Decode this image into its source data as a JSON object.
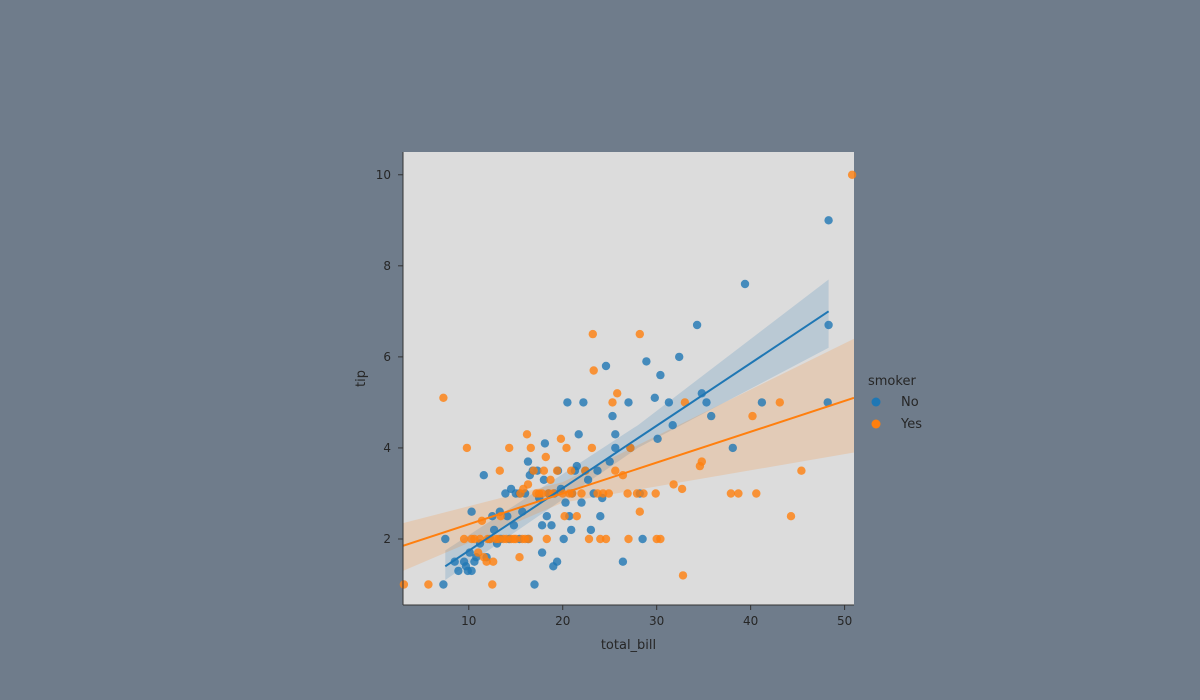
{
  "chart_data": {
    "type": "scatter",
    "xlabel": "total_bill",
    "ylabel": "tip",
    "xlim": [
      3,
      51
    ],
    "ylim": [
      0.55,
      10.5
    ],
    "xticks": [
      10,
      20,
      30,
      40,
      50
    ],
    "yticks": [
      2,
      4,
      6,
      8,
      10
    ],
    "grid": false,
    "background": "#dcdcdc",
    "legend": {
      "title": "smoker",
      "placement": "right"
    },
    "series": [
      {
        "name": "No",
        "color": "#1f77b4",
        "fit": {
          "x": [
            7.5,
            48.3
          ],
          "y": [
            1.4,
            7.0
          ]
        },
        "band": {
          "x": [
            7.5,
            28,
            48.3
          ],
          "lower": [
            1.1,
            4.0,
            6.2
          ],
          "upper": [
            1.75,
            4.5,
            7.7
          ]
        },
        "points": [
          [
            7.3,
            1.0
          ],
          [
            7.5,
            2.0
          ],
          [
            8.5,
            1.5
          ],
          [
            8.9,
            1.3
          ],
          [
            9.5,
            1.5
          ],
          [
            9.7,
            1.4
          ],
          [
            9.9,
            1.3
          ],
          [
            10.1,
            1.7
          ],
          [
            10.3,
            1.3
          ],
          [
            10.3,
            2.6
          ],
          [
            10.6,
            1.5
          ],
          [
            10.8,
            1.6
          ],
          [
            11.2,
            1.9
          ],
          [
            11.6,
            3.4
          ],
          [
            11.9,
            1.6
          ],
          [
            12.2,
            2.0
          ],
          [
            12.5,
            2.5
          ],
          [
            12.7,
            2.2
          ],
          [
            13.0,
            1.9
          ],
          [
            13.3,
            2.6
          ],
          [
            13.4,
            2.0
          ],
          [
            13.9,
            3.0
          ],
          [
            14.1,
            2.5
          ],
          [
            14.3,
            2.0
          ],
          [
            14.5,
            3.1
          ],
          [
            14.8,
            2.3
          ],
          [
            15.0,
            3.0
          ],
          [
            15.4,
            3.0
          ],
          [
            15.4,
            2.0
          ],
          [
            15.7,
            2.6
          ],
          [
            16.0,
            3.0
          ],
          [
            16.3,
            2.0
          ],
          [
            16.3,
            3.7
          ],
          [
            16.5,
            3.4
          ],
          [
            16.8,
            3.5
          ],
          [
            17.0,
            1.0
          ],
          [
            17.3,
            3.5
          ],
          [
            17.5,
            2.9
          ],
          [
            17.8,
            2.3
          ],
          [
            17.8,
            1.7
          ],
          [
            18.0,
            3.3
          ],
          [
            18.1,
            4.1
          ],
          [
            18.3,
            2.5
          ],
          [
            18.5,
            3.0
          ],
          [
            18.8,
            2.3
          ],
          [
            19.0,
            1.4
          ],
          [
            19.1,
            3.0
          ],
          [
            19.4,
            1.5
          ],
          [
            19.5,
            3.5
          ],
          [
            19.8,
            3.1
          ],
          [
            20.1,
            2.0
          ],
          [
            20.3,
            2.8
          ],
          [
            20.5,
            5.0
          ],
          [
            20.7,
            2.5
          ],
          [
            20.9,
            2.2
          ],
          [
            21.0,
            3.0
          ],
          [
            21.3,
            3.5
          ],
          [
            21.5,
            3.6
          ],
          [
            21.7,
            4.3
          ],
          [
            22.0,
            2.8
          ],
          [
            22.2,
            5.0
          ],
          [
            22.4,
            3.5
          ],
          [
            22.7,
            3.3
          ],
          [
            23.0,
            2.2
          ],
          [
            23.3,
            3.0
          ],
          [
            23.7,
            3.5
          ],
          [
            24.0,
            2.5
          ],
          [
            24.2,
            2.9
          ],
          [
            24.6,
            5.8
          ],
          [
            25.0,
            3.7
          ],
          [
            25.3,
            4.7
          ],
          [
            25.6,
            4.3
          ],
          [
            25.6,
            4.0
          ],
          [
            26.4,
            1.5
          ],
          [
            27.0,
            5.0
          ],
          [
            27.2,
            4.0
          ],
          [
            28.2,
            3.0
          ],
          [
            28.5,
            2.0
          ],
          [
            28.9,
            5.9
          ],
          [
            29.8,
            5.1
          ],
          [
            30.1,
            4.2
          ],
          [
            30.4,
            5.6
          ],
          [
            31.3,
            5.0
          ],
          [
            31.7,
            4.5
          ],
          [
            32.4,
            6.0
          ],
          [
            34.3,
            6.7
          ],
          [
            34.8,
            5.2
          ],
          [
            35.3,
            5.0
          ],
          [
            35.8,
            4.7
          ],
          [
            38.1,
            4.0
          ],
          [
            39.4,
            7.6
          ],
          [
            41.2,
            5.0
          ],
          [
            48.2,
            5.0
          ],
          [
            48.3,
            9.0
          ],
          [
            48.3,
            6.7
          ]
        ]
      },
      {
        "name": "Yes",
        "color": "#ff7f0e",
        "fit": {
          "x": [
            3,
            51
          ],
          "y": [
            1.85,
            5.1
          ]
        },
        "band": {
          "x": [
            3,
            20,
            51
          ],
          "lower": [
            1.3,
            2.8,
            3.9
          ],
          "upper": [
            2.35,
            3.25,
            6.4
          ]
        },
        "points": [
          [
            3.1,
            1.0
          ],
          [
            5.7,
            1.0
          ],
          [
            7.3,
            5.1
          ],
          [
            9.5,
            2.0
          ],
          [
            9.8,
            4.0
          ],
          [
            10.3,
            2.0
          ],
          [
            10.6,
            2.0
          ],
          [
            11.0,
            1.7
          ],
          [
            11.2,
            2.0
          ],
          [
            11.4,
            2.4
          ],
          [
            11.6,
            1.6
          ],
          [
            11.9,
            1.5
          ],
          [
            12.0,
            2.0
          ],
          [
            12.3,
            2.0
          ],
          [
            12.5,
            1.0
          ],
          [
            12.6,
            1.5
          ],
          [
            12.9,
            2.0
          ],
          [
            13.2,
            2.0
          ],
          [
            13.3,
            3.5
          ],
          [
            13.4,
            2.5
          ],
          [
            13.7,
            2.0
          ],
          [
            14.0,
            2.0
          ],
          [
            14.3,
            4.0
          ],
          [
            14.5,
            2.0
          ],
          [
            14.8,
            2.0
          ],
          [
            15.0,
            2.0
          ],
          [
            15.4,
            1.6
          ],
          [
            15.5,
            3.0
          ],
          [
            15.7,
            2.0
          ],
          [
            15.8,
            3.1
          ],
          [
            16.0,
            2.0
          ],
          [
            16.2,
            4.3
          ],
          [
            16.3,
            3.2
          ],
          [
            16.4,
            2.0
          ],
          [
            16.6,
            4.0
          ],
          [
            16.9,
            3.5
          ],
          [
            17.2,
            3.0
          ],
          [
            17.5,
            3.0
          ],
          [
            17.8,
            3.0
          ],
          [
            18.0,
            3.5
          ],
          [
            18.2,
            3.8
          ],
          [
            18.3,
            2.0
          ],
          [
            18.5,
            3.0
          ],
          [
            18.7,
            3.3
          ],
          [
            19.0,
            3.0
          ],
          [
            19.4,
            3.5
          ],
          [
            19.8,
            4.2
          ],
          [
            20.0,
            3.0
          ],
          [
            20.2,
            2.5
          ],
          [
            20.4,
            4.0
          ],
          [
            20.7,
            3.0
          ],
          [
            20.9,
            3.5
          ],
          [
            21.0,
            3.0
          ],
          [
            21.5,
            2.5
          ],
          [
            22.0,
            3.0
          ],
          [
            22.4,
            3.5
          ],
          [
            22.8,
            2.0
          ],
          [
            23.1,
            4.0
          ],
          [
            23.2,
            6.5
          ],
          [
            23.3,
            5.7
          ],
          [
            23.7,
            3.0
          ],
          [
            24.0,
            2.0
          ],
          [
            24.3,
            3.0
          ],
          [
            24.6,
            2.0
          ],
          [
            24.9,
            3.0
          ],
          [
            25.3,
            5.0
          ],
          [
            25.6,
            3.5
          ],
          [
            25.8,
            5.2
          ],
          [
            26.4,
            3.4
          ],
          [
            26.9,
            3.0
          ],
          [
            27.0,
            2.0
          ],
          [
            27.2,
            4.0
          ],
          [
            27.9,
            3.0
          ],
          [
            28.2,
            6.5
          ],
          [
            28.2,
            2.6
          ],
          [
            28.6,
            3.0
          ],
          [
            29.9,
            3.0
          ],
          [
            30.0,
            2.0
          ],
          [
            30.4,
            2.0
          ],
          [
            31.8,
            3.2
          ],
          [
            32.7,
            3.1
          ],
          [
            32.8,
            1.2
          ],
          [
            33.0,
            5.0
          ],
          [
            34.6,
            3.6
          ],
          [
            34.8,
            3.7
          ],
          [
            37.9,
            3.0
          ],
          [
            38.7,
            3.0
          ],
          [
            40.2,
            4.7
          ],
          [
            40.6,
            3.0
          ],
          [
            43.1,
            5.0
          ],
          [
            44.3,
            2.5
          ],
          [
            45.4,
            3.5
          ],
          [
            50.8,
            10.0
          ]
        ]
      }
    ]
  }
}
